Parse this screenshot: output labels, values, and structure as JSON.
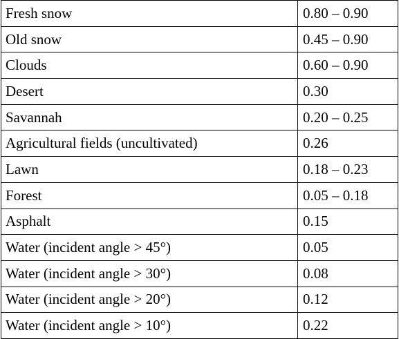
{
  "table": {
    "rows": [
      {
        "surface": "Fresh snow",
        "albedo": "0.80 – 0.90"
      },
      {
        "surface": "Old snow",
        "albedo": "0.45 – 0.90"
      },
      {
        "surface": "Clouds",
        "albedo": "0.60 – 0.90"
      },
      {
        "surface": "Desert",
        "albedo": "0.30"
      },
      {
        "surface": "Savannah",
        "albedo": "0.20 – 0.25"
      },
      {
        "surface": "Agricultural fields (uncultivated)",
        "albedo": "0.26"
      },
      {
        "surface": "Lawn",
        "albedo": "0.18 – 0.23"
      },
      {
        "surface": "Forest",
        "albedo": "0.05 – 0.18"
      },
      {
        "surface": "Asphalt",
        "albedo": "0.15"
      },
      {
        "surface": "Water (incident angle > 45°)",
        "albedo": "0.05"
      },
      {
        "surface": "Water (incident angle > 30°)",
        "albedo": "0.08"
      },
      {
        "surface": "Water (incident angle > 20°)",
        "albedo": "0.12"
      },
      {
        "surface": "Water (incident angle > 10°)",
        "albedo": "0.22"
      }
    ]
  }
}
